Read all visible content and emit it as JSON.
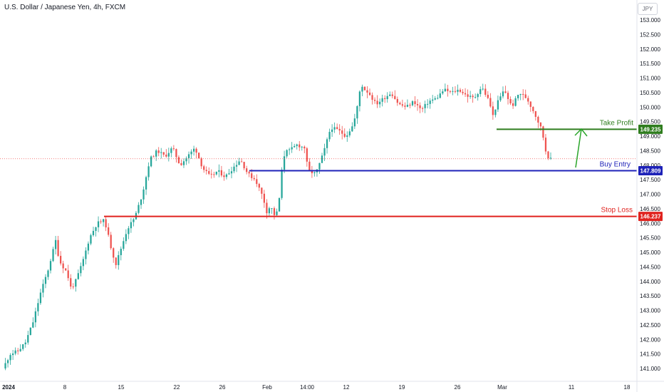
{
  "title": "U.S. Dollar / Japanese Yen, 4h, FXCM",
  "currency": "JPY",
  "chart_data": {
    "type": "candlestick",
    "ylim": [
      140.75,
      153.3
    ],
    "yticks": [
      "141.000",
      "141.500",
      "142.000",
      "142.500",
      "143.000",
      "143.500",
      "144.000",
      "144.500",
      "145.000",
      "145.500",
      "146.000",
      "146.500",
      "147.000",
      "147.500",
      "148.000",
      "148.500",
      "149.000",
      "149.500",
      "150.000",
      "150.500",
      "151.000",
      "151.500",
      "152.000",
      "152.500",
      "153.000"
    ],
    "xticks": [
      "2024",
      "8",
      "15",
      "22",
      "26",
      "Feb",
      "14:00",
      "12",
      "19",
      "26",
      "Mar",
      "11",
      "18"
    ],
    "current_price": 148.22,
    "price_path": [
      [
        0,
        141.0
      ],
      [
        2,
        141.5
      ],
      [
        4,
        141.6
      ],
      [
        6,
        141.9
      ],
      [
        8,
        142.6
      ],
      [
        10,
        143.6
      ],
      [
        12,
        144.4
      ],
      [
        14,
        145.4
      ],
      [
        15,
        144.7
      ],
      [
        17,
        144.3
      ],
      [
        18,
        143.8
      ],
      [
        19,
        143.9
      ],
      [
        21,
        144.6
      ],
      [
        23,
        145.5
      ],
      [
        25,
        146.0
      ],
      [
        27,
        146.1
      ],
      [
        29,
        145.0
      ],
      [
        30,
        144.6
      ],
      [
        31,
        145.0
      ],
      [
        33,
        145.8
      ],
      [
        35,
        146.2
      ],
      [
        37,
        147.0
      ],
      [
        38,
        147.6
      ],
      [
        39,
        148.2
      ],
      [
        41,
        148.5
      ],
      [
        43,
        148.3
      ],
      [
        45,
        148.6
      ],
      [
        47,
        148.0
      ],
      [
        49,
        148.3
      ],
      [
        51,
        148.6
      ],
      [
        53,
        147.9
      ],
      [
        55,
        147.6
      ],
      [
        57,
        147.8
      ],
      [
        59,
        147.6
      ],
      [
        61,
        147.9
      ],
      [
        63,
        148.2
      ],
      [
        65,
        147.7
      ],
      [
        67,
        147.5
      ],
      [
        69,
        146.9
      ],
      [
        70,
        146.4
      ],
      [
        71,
        146.6
      ],
      [
        72,
        146.3
      ],
      [
        73,
        146.4
      ],
      [
        74,
        147.8
      ],
      [
        75,
        148.6
      ],
      [
        76,
        148.5
      ],
      [
        78,
        148.7
      ],
      [
        80,
        148.6
      ],
      [
        81,
        147.8
      ],
      [
        83,
        147.7
      ],
      [
        85,
        148.4
      ],
      [
        87,
        149.3
      ],
      [
        89,
        149.2
      ],
      [
        91,
        149.0
      ],
      [
        93,
        149.4
      ],
      [
        94,
        150.0
      ],
      [
        95,
        150.8
      ],
      [
        96,
        150.6
      ],
      [
        97,
        150.5
      ],
      [
        99,
        150.1
      ],
      [
        101,
        150.3
      ],
      [
        103,
        150.5
      ],
      [
        105,
        150.1
      ],
      [
        107,
        150.0
      ],
      [
        109,
        150.2
      ],
      [
        111,
        149.9
      ],
      [
        113,
        150.2
      ],
      [
        115,
        150.3
      ],
      [
        117,
        150.6
      ],
      [
        119,
        150.5
      ],
      [
        121,
        150.6
      ],
      [
        123,
        150.4
      ],
      [
        125,
        150.3
      ],
      [
        127,
        150.7
      ],
      [
        129,
        150.2
      ],
      [
        130,
        149.7
      ],
      [
        131,
        150.1
      ],
      [
        133,
        150.6
      ],
      [
        135,
        150.0
      ],
      [
        137,
        150.5
      ],
      [
        139,
        150.3
      ],
      [
        141,
        149.8
      ],
      [
        142,
        149.5
      ],
      [
        143,
        149.2
      ],
      [
        144,
        148.5
      ],
      [
        145,
        148.2
      ]
    ],
    "levels": [
      {
        "label": "Take Profit",
        "price_label": "149.235",
        "value": 149.235,
        "color": "#2f7d1e"
      },
      {
        "label": "Buy Entry",
        "price_label": "147.809",
        "value": 147.809,
        "color": "#1e22b8"
      },
      {
        "label": "Stop Loss",
        "price_label": "146.237",
        "value": 146.237,
        "color": "#e0221e"
      }
    ],
    "colors": {
      "up": "#26a69a",
      "down": "#ef5350",
      "arrow": "#2aa52a",
      "grid_text": "#131722"
    }
  }
}
